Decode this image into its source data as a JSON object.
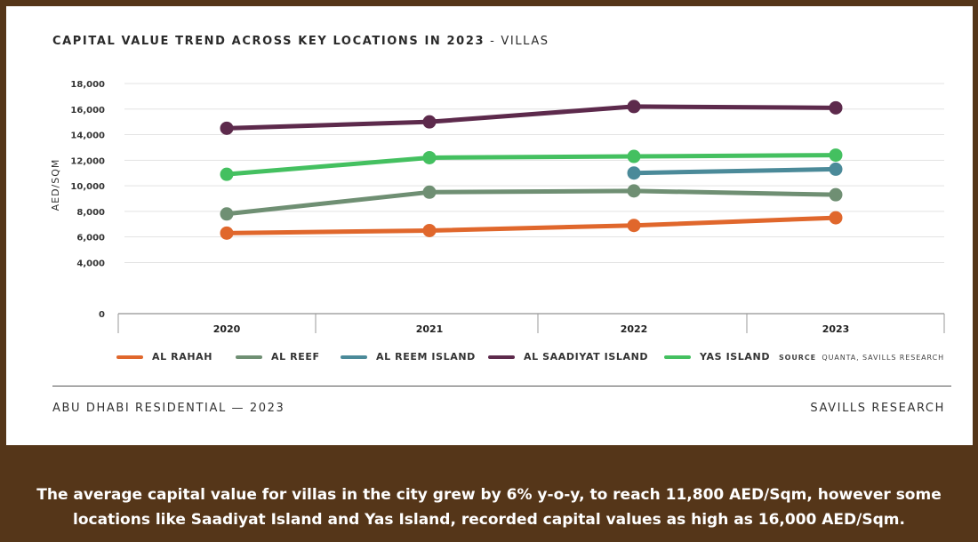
{
  "chart": {
    "title": "CAPITAL VALUE TREND ACROSS KEY LOCATIONS IN 2023",
    "separator": "-",
    "subtitle": "VILLAS",
    "source_label": "SOURCE",
    "source_text": "QUANTA, SAVILLS RESEARCH"
  },
  "footer": {
    "left": "ABU DHABI RESIDENTIAL — 2023",
    "right": "SAVILLS RESEARCH"
  },
  "caption": "The average capital value for villas in the city grew by 6% y-o-y, to reach 11,800 AED/Sqm, however some locations like Saadiyat Island and Yas Island, recorded capital values as high as 16,000 AED/Sqm.",
  "chart_data": {
    "type": "line",
    "title": "CAPITAL VALUE TREND ACROSS KEY LOCATIONS IN 2023 - VILLAS",
    "xlabel": "",
    "ylabel": "AED/SQM",
    "categories": [
      "2020",
      "2021",
      "2022",
      "2023"
    ],
    "y_ticks": [
      0,
      4000,
      6000,
      8000,
      10000,
      12000,
      14000,
      16000,
      18000
    ],
    "y_tick_labels": [
      "0",
      "4,000",
      "6,000",
      "8,000",
      "10,000",
      "12,000",
      "14,000",
      "16,000",
      "18,000"
    ],
    "ylim": [
      0,
      18000
    ],
    "grid": true,
    "legend_position": "bottom",
    "series": [
      {
        "name": "AL RAHAH",
        "color": "#e0672c",
        "values": [
          6300,
          6500,
          6900,
          7500
        ]
      },
      {
        "name": "AL REEF",
        "color": "#6f8f73",
        "values": [
          7800,
          9500,
          9600,
          9300
        ]
      },
      {
        "name": "AL REEM ISLAND",
        "color": "#4b8a99",
        "values": [
          null,
          null,
          11000,
          11300
        ]
      },
      {
        "name": "AL SAADIYAT ISLAND",
        "color": "#5d2a4c",
        "values": [
          14500,
          15000,
          16200,
          16100
        ]
      },
      {
        "name": "YAS ISLAND",
        "color": "#44c060",
        "values": [
          10900,
          12200,
          12300,
          12400
        ]
      }
    ]
  }
}
